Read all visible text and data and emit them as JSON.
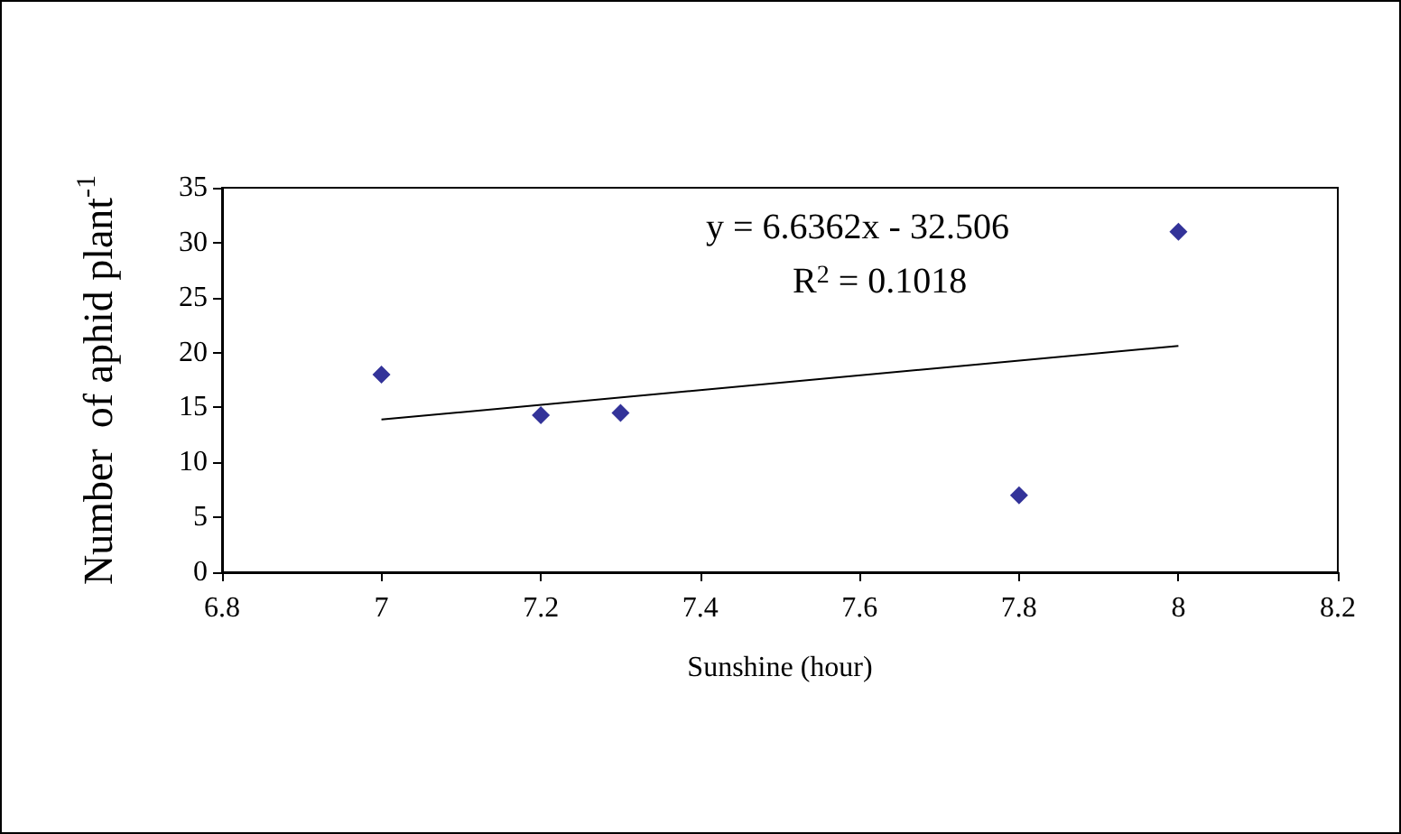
{
  "chart_data": {
    "type": "scatter",
    "xlabel": "Sunshine (hour)",
    "ylabel": "Number  of aphid plant$^{-1}$",
    "x": [
      7,
      7.2,
      7.3,
      7.8,
      8
    ],
    "series": [
      {
        "color": "#000080",
        "marker": "diamond",
        "values": [
          18,
          14.3,
          14.5,
          7,
          31
        ]
      },
      {
        "type": "line",
        "color": "#000000",
        "marker": "none",
        "line_style": "solid",
        "x": [
          7,
          8
        ],
        "values": [
          13.9,
          20.6
        ]
      }
    ],
    "annotations": [
      "y = 6.6362x - 32.506",
      "R$^{2}$ = 0.1018"
    ],
    "xlim": [
      6.8,
      8.2
    ],
    "xticks": [
      6.8,
      7,
      7.2,
      7.4,
      7.6,
      7.8,
      8,
      8.2
    ],
    "ylim": [
      0,
      35
    ],
    "yticks": [
      0,
      5,
      10,
      15,
      20,
      25,
      30,
      35
    ],
    "grid": false
  }
}
